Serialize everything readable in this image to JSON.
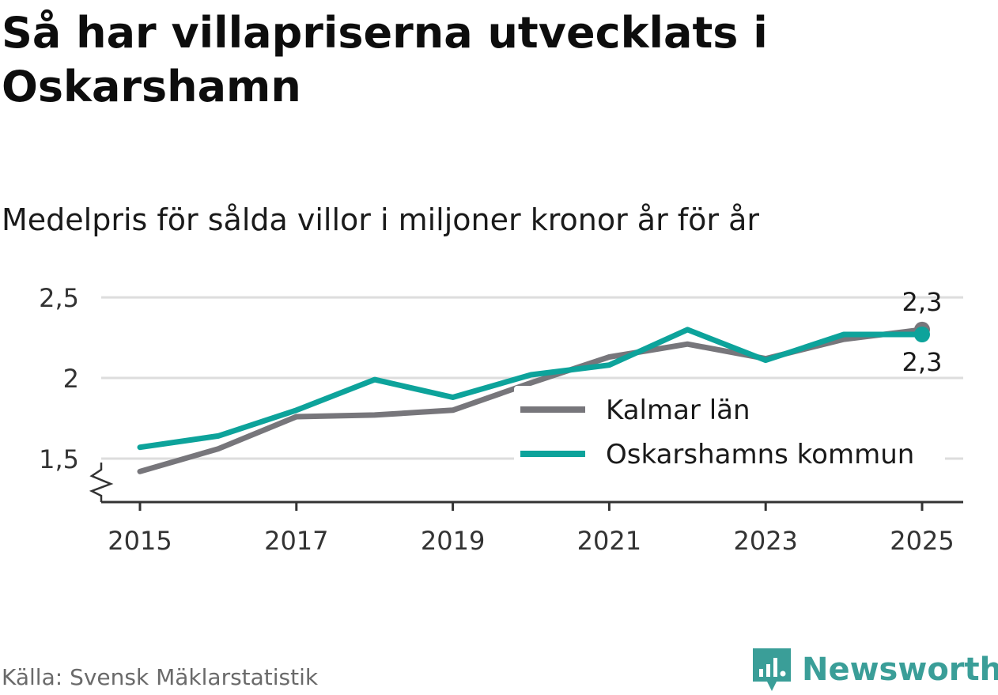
{
  "title": "Så har villapriserna utvecklats i Oskarshamn",
  "subtitle": "Medelpris för sålda villor i miljoner kronor år för år",
  "source": "Källa: Svensk Mäklarstatistik",
  "brand": {
    "name": "Newsworthy",
    "icon": "newsworthy-logo-icon",
    "color": "#3a9e98"
  },
  "chart_data": {
    "type": "line",
    "title": "Så har villapriserna utvecklats i Oskarshamn",
    "subtitle": "Medelpris för sålda villor i miljoner kronor år för år",
    "xlabel": "",
    "ylabel": "",
    "x": [
      2015,
      2016,
      2017,
      2018,
      2019,
      2020,
      2021,
      2022,
      2023,
      2024,
      2025
    ],
    "x_ticks": [
      "2015",
      "2017",
      "2019",
      "2021",
      "2023",
      "2025"
    ],
    "y_ticks": [
      "1,5",
      "2",
      "2,5"
    ],
    "y_tick_values": [
      1.5,
      2.0,
      2.5
    ],
    "ylim": [
      1.23,
      2.53
    ],
    "grid": true,
    "axis_break": true,
    "legend_position": "center-right",
    "series": [
      {
        "name": "Kalmar län",
        "color": "#77767b",
        "values": [
          1.42,
          1.56,
          1.76,
          1.77,
          1.8,
          1.97,
          2.13,
          2.21,
          2.12,
          2.24,
          2.3
        ],
        "end_label": "2,3"
      },
      {
        "name": "Oskarshamns kommun",
        "color": "#0da39b",
        "values": [
          1.57,
          1.64,
          1.8,
          1.99,
          1.88,
          2.02,
          2.08,
          2.3,
          2.11,
          2.27,
          2.27
        ],
        "end_label": "2,3"
      }
    ]
  }
}
